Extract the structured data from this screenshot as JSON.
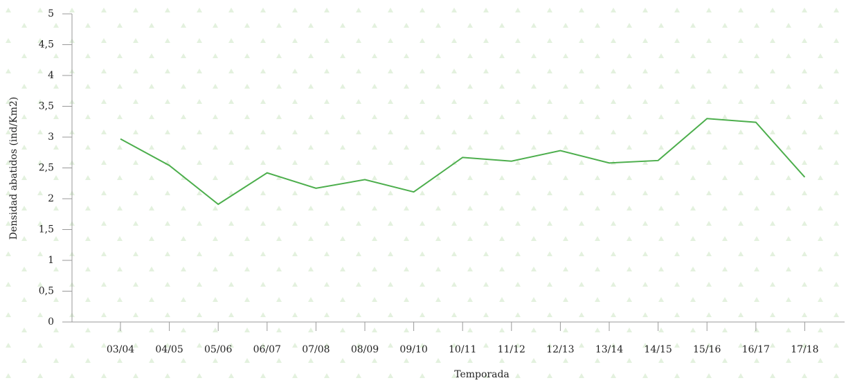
{
  "chart_data": {
    "type": "line",
    "x_label": "Temporada",
    "y_label": "Densidad abatidos (ind/Km2)",
    "categories": [
      "03/04",
      "04/05",
      "05/06",
      "06/07",
      "07/08",
      "08/09",
      "09/10",
      "10/11",
      "11/12",
      "12/13",
      "13/14",
      "14/15",
      "15/16",
      "16/17",
      "17/18"
    ],
    "series": [
      {
        "name": "Densidad abatidos",
        "color": "#4cae4c",
        "values": [
          2.97,
          2.54,
          1.91,
          2.42,
          2.17,
          2.31,
          2.11,
          2.67,
          2.61,
          2.78,
          2.58,
          2.62,
          3.3,
          3.24,
          2.35
        ]
      }
    ],
    "ylim": [
      0,
      5
    ],
    "yticks": [
      0,
      {
        "value": 0.5,
        "label": "0,5"
      },
      1,
      {
        "value": 1.5,
        "label": "1,5"
      },
      2,
      {
        "value": 2.5,
        "label": "2,5"
      },
      3,
      {
        "value": 3.5,
        "label": "3,5"
      },
      4,
      {
        "value": 4.5,
        "label": "4,5"
      },
      5
    ]
  }
}
